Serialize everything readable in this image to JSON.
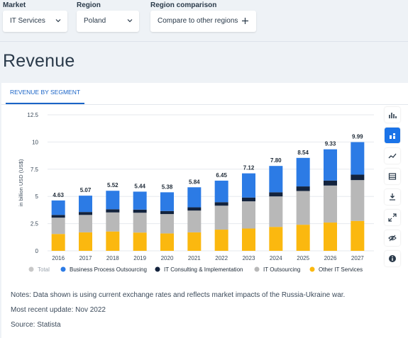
{
  "filters": {
    "market": {
      "label": "Market",
      "value": "IT Services"
    },
    "region": {
      "label": "Region",
      "value": "Poland"
    },
    "comparison": {
      "label": "Region comparison",
      "button": "Compare to other regions"
    }
  },
  "page_title": "Revenue",
  "tab_label": "REVENUE BY SEGMENT",
  "toolbar": [
    "bar-chart-icon",
    "stacked-bar-icon",
    "trend-line-icon",
    "table-icon",
    "download-icon",
    "fullscreen-icon",
    "hide-icon",
    "info-icon"
  ],
  "colors": {
    "bpo": "#2c7be5",
    "consulting": "#13233d",
    "outsourcing": "#b8b8b8",
    "other": "#fbb80f",
    "total": "#c8c8c8",
    "accent": "#1a73e8"
  },
  "chart_data": {
    "type": "bar",
    "stacked": true,
    "title": "",
    "ylabel": "in billion USD (US$)",
    "ylim": [
      0,
      12.5
    ],
    "yticks": [
      "0",
      "2.5",
      "5",
      "7.5",
      "10",
      "12.5"
    ],
    "grid": true,
    "legend_position": "bottom",
    "categories": [
      "2016",
      "2017",
      "2018",
      "2019",
      "2020",
      "2021",
      "2022",
      "2023",
      "2024",
      "2025",
      "2026",
      "2027"
    ],
    "totals": [
      "4.63",
      "5.07",
      "5.52",
      "5.44",
      "5.38",
      "5.84",
      "6.45",
      "7.12",
      "7.80",
      "8.54",
      "9.33",
      "9.99"
    ],
    "total_legend": "Total",
    "series": [
      {
        "name": "Other IT Services",
        "color_key": "other",
        "values": [
          1.55,
          1.7,
          1.78,
          1.68,
          1.6,
          1.7,
          1.95,
          2.05,
          2.2,
          2.4,
          2.6,
          2.75
        ]
      },
      {
        "name": "IT Outsourcing",
        "color_key": "outsourcing",
        "values": [
          1.5,
          1.6,
          1.75,
          1.82,
          1.78,
          2.0,
          2.2,
          2.5,
          2.8,
          3.1,
          3.4,
          3.75
        ]
      },
      {
        "name": "IT Consulting & Implementation",
        "color_key": "consulting",
        "values": [
          0.25,
          0.27,
          0.29,
          0.29,
          0.28,
          0.3,
          0.32,
          0.35,
          0.38,
          0.42,
          0.46,
          0.5
        ]
      },
      {
        "name": "Business Process Outsourcing",
        "color_key": "bpo",
        "values": [
          1.33,
          1.5,
          1.7,
          1.65,
          1.72,
          1.84,
          1.98,
          2.22,
          2.42,
          2.62,
          2.87,
          2.99
        ]
      }
    ],
    "legend_order": [
      "Business Process Outsourcing",
      "IT Consulting & Implementation",
      "IT Outsourcing",
      "Other IT Services"
    ]
  },
  "notes": {
    "note": "Notes: Data shown is using current exchange rates and reflects market impacts of the Russia-Ukraine war.",
    "update": "Most recent update: Nov 2022",
    "source": "Source: Statista"
  }
}
